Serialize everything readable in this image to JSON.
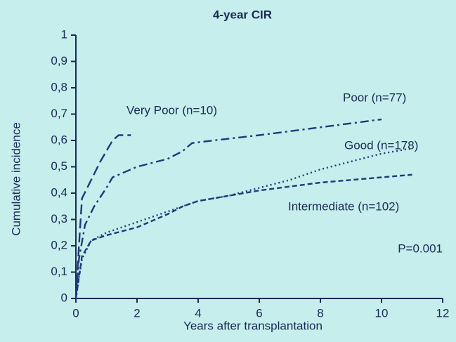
{
  "chart_data": {
    "type": "line",
    "title": "4-year CIR",
    "xlabel": "Years after transplantation",
    "ylabel": "Cumulative incidence",
    "xlim": [
      0,
      12
    ],
    "xticks": [
      0,
      2,
      4,
      6,
      8,
      10,
      12
    ],
    "ylim": [
      0,
      1
    ],
    "yticks": [
      0,
      {
        "value": 0.1,
        "label": "0,1"
      },
      {
        "value": 0.2,
        "label": "0,2"
      },
      {
        "value": 0.3,
        "label": "0,3"
      },
      {
        "value": 0.4,
        "label": "0,4"
      },
      {
        "value": 0.5,
        "label": "0,5"
      },
      {
        "value": 0.6,
        "label": "0,6"
      },
      {
        "value": 0.7,
        "label": "0,7"
      },
      {
        "value": 0.8,
        "label": "0,8"
      },
      {
        "value": 0.9,
        "label": "0,9"
      },
      1
    ],
    "grid": false,
    "series": [
      {
        "name": "Very Poor (n=10)",
        "color": "#1f3a7a",
        "dash": "long-dash",
        "x": [
          0,
          0.1,
          0.2,
          0.5,
          0.8,
          1.2,
          1.4,
          1.8
        ],
        "values": [
          0,
          0.2,
          0.38,
          0.45,
          0.52,
          0.6,
          0.62,
          0.62
        ]
      },
      {
        "name": "Poor (n=77)",
        "color": "#1f3a7a",
        "dash": "dash-dot",
        "x": [
          0,
          0.1,
          0.3,
          0.6,
          1,
          1.2,
          2,
          3,
          3.5,
          3.8,
          4.5,
          6,
          8,
          10
        ],
        "values": [
          0,
          0.15,
          0.28,
          0.35,
          0.42,
          0.46,
          0.5,
          0.53,
          0.56,
          0.59,
          0.6,
          0.62,
          0.65,
          0.68
        ]
      },
      {
        "name": "Good (n=178)",
        "color": "#1f3a7a",
        "dash": "dotted",
        "x": [
          0,
          0.2,
          0.5,
          1,
          2,
          3,
          4,
          5,
          6,
          7,
          8,
          9,
          10,
          11
        ],
        "values": [
          0,
          0.15,
          0.22,
          0.25,
          0.29,
          0.33,
          0.37,
          0.39,
          0.42,
          0.45,
          0.49,
          0.52,
          0.55,
          0.57
        ]
      },
      {
        "name": "Intermediate (n=102)",
        "color": "#1f3a7a",
        "dash": "short-dash",
        "x": [
          0,
          0.2,
          0.5,
          1,
          2,
          3,
          3.5,
          4,
          5,
          6,
          8,
          10,
          11
        ],
        "values": [
          0,
          0.16,
          0.22,
          0.24,
          0.27,
          0.32,
          0.35,
          0.37,
          0.39,
          0.41,
          0.44,
          0.46,
          0.47
        ]
      }
    ],
    "annotation": "P=0.001"
  }
}
